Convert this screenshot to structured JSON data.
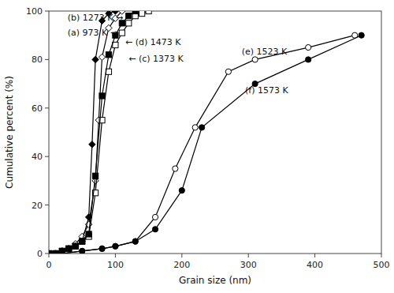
{
  "chart_data": {
    "type": "line",
    "xlabel": "Grain size (nm)",
    "ylabel": "Cumulative percent (%)",
    "xlim": [
      0,
      500
    ],
    "ylim": [
      0,
      100
    ],
    "xticks": [
      0,
      100,
      200,
      300,
      400,
      500
    ],
    "yticks": [
      0,
      20,
      40,
      60,
      80,
      100
    ],
    "series": [
      {
        "color": "black",
        "marker": "open-diamond",
        "x": [
          0,
          10,
          20,
          30,
          40,
          50,
          60,
          70,
          75,
          80,
          90,
          100,
          110
        ],
        "values": [
          0,
          0,
          1,
          2,
          4,
          7,
          12,
          30,
          55,
          81,
          93,
          97,
          100
        ]
      },
      {
        "color": "black",
        "marker": "diamond",
        "x": [
          0,
          10,
          20,
          30,
          40,
          50,
          60,
          65,
          70,
          80,
          90,
          100
        ],
        "values": [
          0,
          0,
          1,
          2,
          3,
          5,
          15,
          45,
          80,
          96,
          99,
          100
        ]
      },
      {
        "color": "black",
        "marker": "open-square",
        "x": [
          0,
          10,
          20,
          30,
          40,
          50,
          60,
          70,
          80,
          90,
          100,
          110,
          120,
          130,
          140,
          150
        ],
        "values": [
          0,
          0,
          1,
          2,
          3,
          5,
          7,
          25,
          55,
          75,
          86,
          91,
          95,
          98,
          99,
          100
        ]
      },
      {
        "color": "black",
        "marker": "square",
        "x": [
          0,
          10,
          20,
          30,
          40,
          50,
          60,
          70,
          80,
          90,
          100,
          110,
          120,
          130
        ],
        "values": [
          0,
          0,
          1,
          2,
          3,
          5,
          8,
          32,
          65,
          82,
          90,
          95,
          98,
          100
        ]
      },
      {
        "color": "black",
        "marker": "open-circle",
        "x": [
          0,
          20,
          50,
          80,
          100,
          130,
          160,
          190,
          220,
          270,
          310,
          390,
          460
        ],
        "values": [
          0,
          0,
          1,
          2,
          3,
          5,
          15,
          35,
          52,
          75,
          80,
          85,
          90
        ]
      },
      {
        "color": "black",
        "marker": "circle",
        "x": [
          0,
          20,
          50,
          80,
          100,
          130,
          160,
          200,
          230,
          310,
          390,
          470
        ],
        "values": [
          0,
          0,
          1,
          2,
          3,
          5,
          10,
          26,
          52,
          70,
          80,
          90
        ]
      }
    ],
    "annotations": [
      {
        "text": "(b) 1273 K →",
        "x": 28,
        "y": 97
      },
      {
        "text": "(a) 973 K →",
        "x": 28,
        "y": 91
      },
      {
        "text": "← (d) 1473 K",
        "x": 115,
        "y": 87
      },
      {
        "text": "← (c) 1373 K",
        "x": 120,
        "y": 80
      },
      {
        "text": "(e) 1523 K",
        "x": 290,
        "y": 83
      },
      {
        "text": "(f) 1573 K",
        "x": 295,
        "y": 67
      }
    ]
  }
}
